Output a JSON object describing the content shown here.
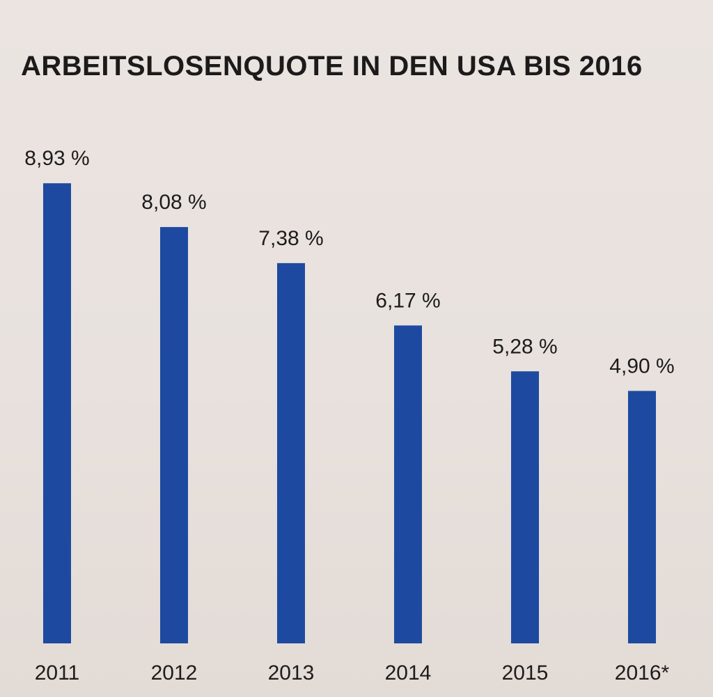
{
  "chart_data": {
    "type": "bar",
    "title": "ARBEITSLOSENQUOTE IN DEN USA BIS 2016",
    "categories": [
      "2011",
      "2012",
      "2013",
      "2014",
      "2015",
      "2016*"
    ],
    "values": [
      8.93,
      8.08,
      7.38,
      6.17,
      5.28,
      4.9
    ],
    "value_labels": [
      "8,93 %",
      "8,08 %",
      "7,38 %",
      "6,17 %",
      "5,28 %",
      "4,90 %"
    ],
    "unit": "%",
    "bar_color": "#1d4aa0",
    "grid": false,
    "legend": "none"
  }
}
